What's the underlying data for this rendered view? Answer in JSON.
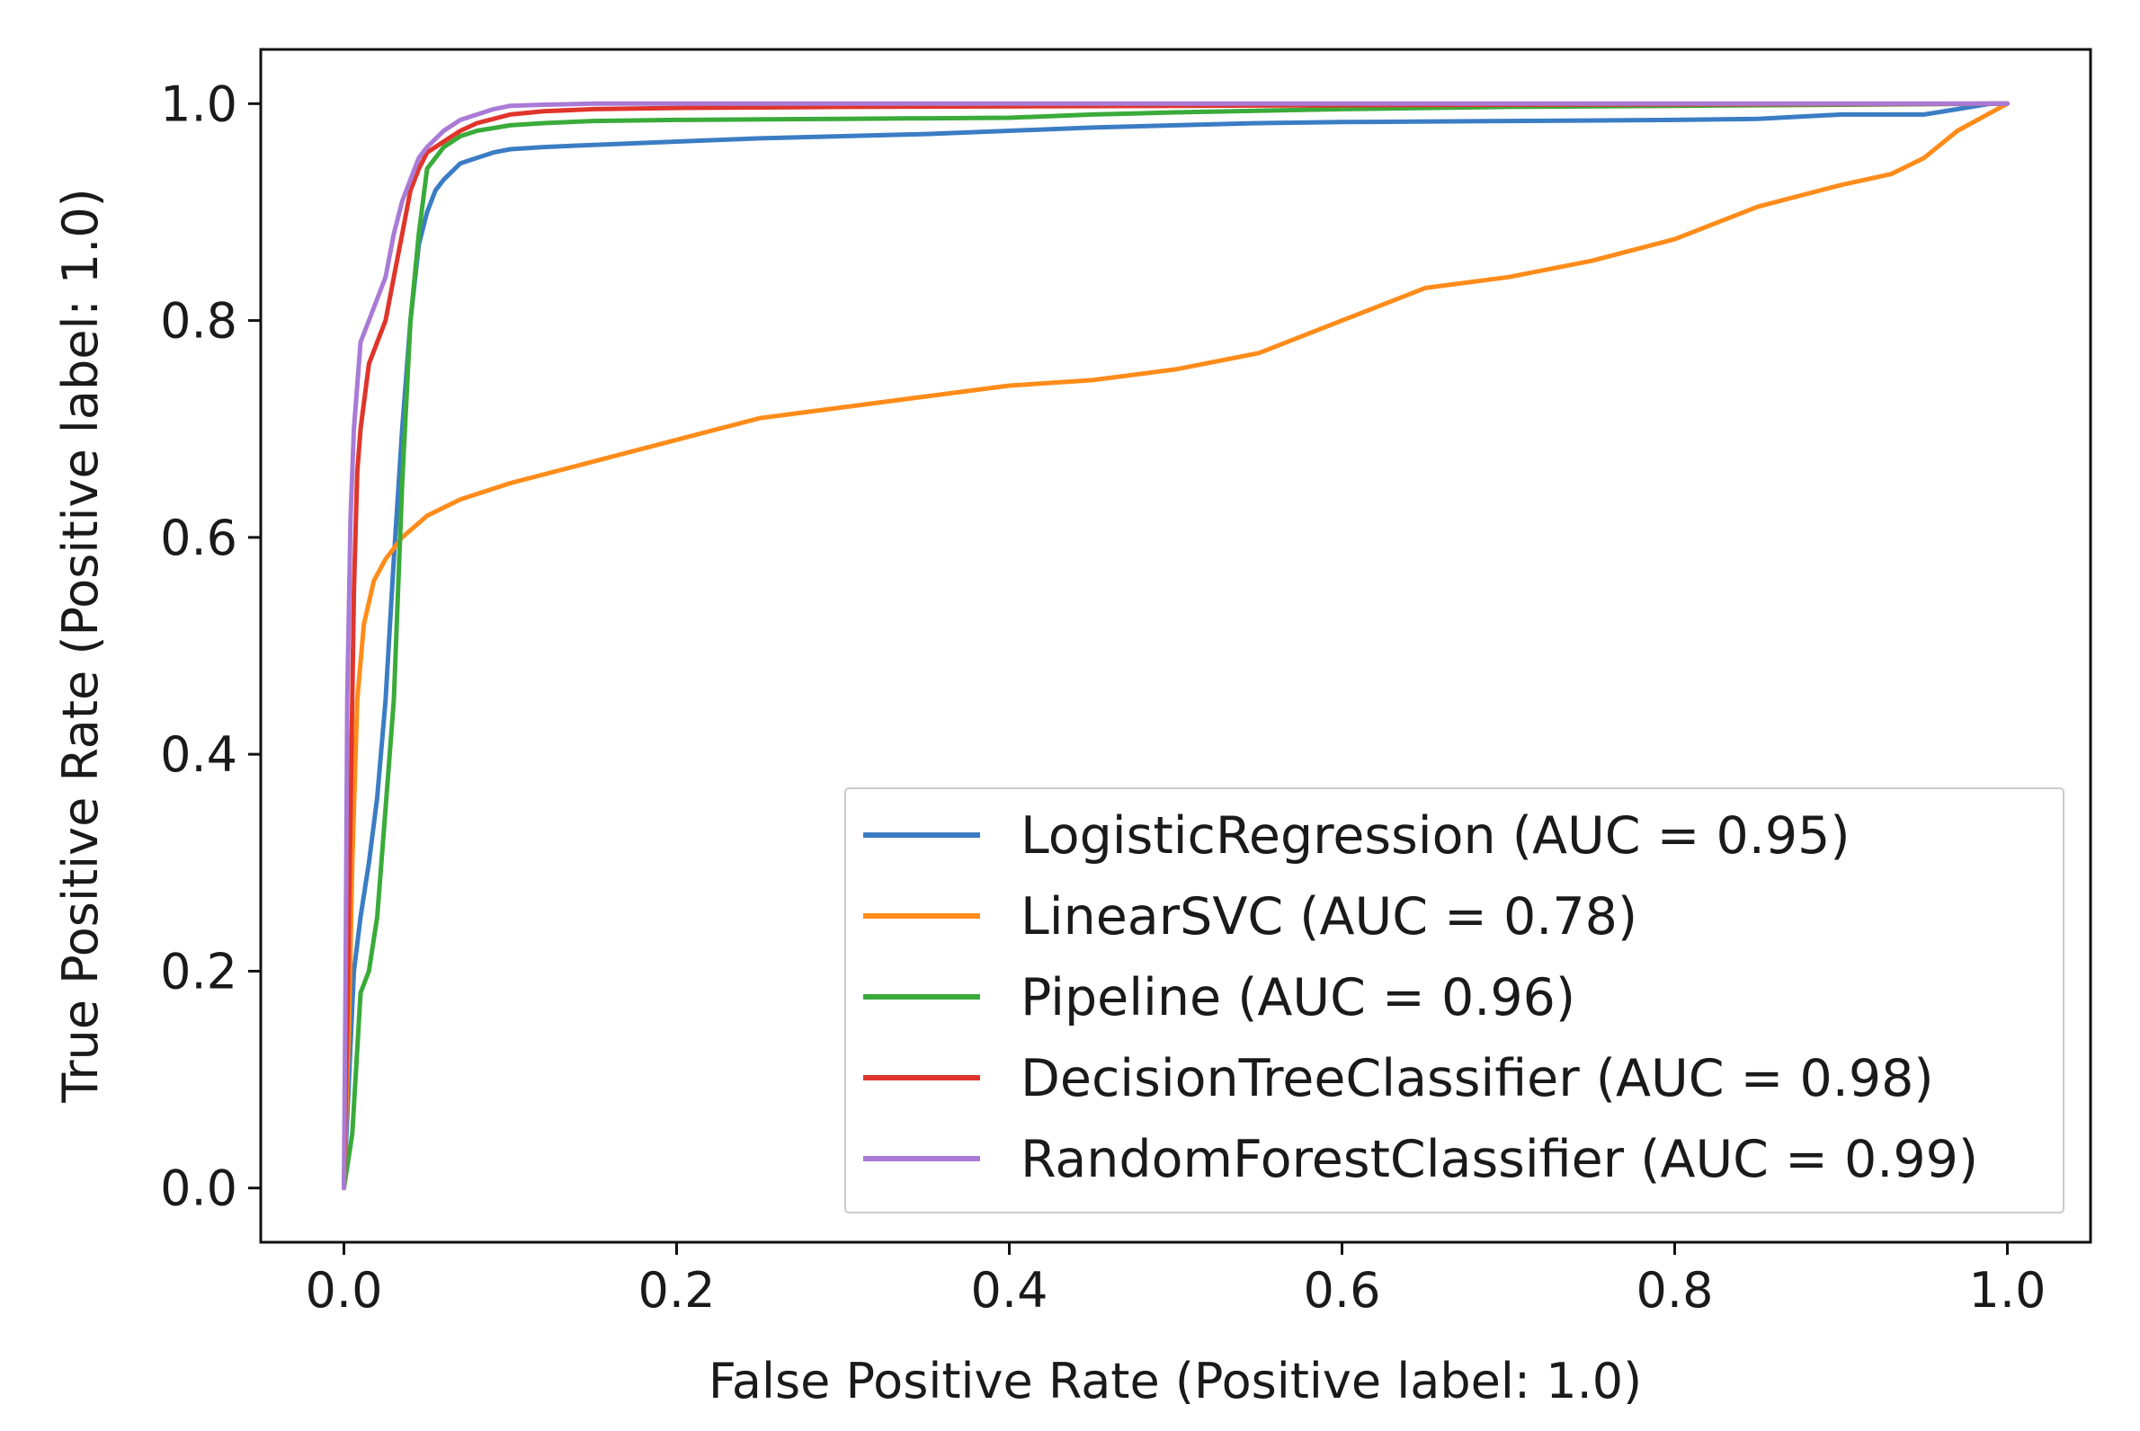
{
  "chart_data": {
    "type": "line",
    "title": "",
    "xlabel": "False Positive Rate (Positive label: 1.0)",
    "ylabel": "True Positive Rate (Positive label: 1.0)",
    "xlim": [
      -0.05,
      1.05
    ],
    "ylim": [
      -0.05,
      1.05
    ],
    "xticks": [
      0.0,
      0.2,
      0.4,
      0.6,
      0.8,
      1.0
    ],
    "yticks": [
      0.0,
      0.2,
      0.4,
      0.6,
      0.8,
      1.0
    ],
    "xtick_labels": [
      "0.0",
      "0.2",
      "0.4",
      "0.6",
      "0.8",
      "1.0"
    ],
    "ytick_labels": [
      "0.0",
      "0.2",
      "0.4",
      "0.6",
      "0.8",
      "1.0"
    ],
    "grid": false,
    "legend_position": "lower-right",
    "series": [
      {
        "name": "LogisticRegression (AUC = 0.95)",
        "color": "#3b7dc4",
        "x": [
          0.0,
          0.003,
          0.006,
          0.01,
          0.015,
          0.02,
          0.025,
          0.03,
          0.035,
          0.04,
          0.045,
          0.05,
          0.055,
          0.06,
          0.07,
          0.08,
          0.09,
          0.1,
          0.12,
          0.15,
          0.2,
          0.25,
          0.3,
          0.35,
          0.4,
          0.45,
          0.5,
          0.55,
          0.6,
          0.7,
          0.8,
          0.85,
          0.9,
          0.95,
          0.97,
          0.99,
          1.0
        ],
        "y": [
          0.0,
          0.1,
          0.2,
          0.25,
          0.3,
          0.36,
          0.45,
          0.58,
          0.7,
          0.8,
          0.87,
          0.9,
          0.92,
          0.93,
          0.945,
          0.95,
          0.955,
          0.958,
          0.96,
          0.962,
          0.965,
          0.968,
          0.97,
          0.972,
          0.975,
          0.978,
          0.98,
          0.982,
          0.983,
          0.984,
          0.985,
          0.986,
          0.99,
          0.99,
          0.995,
          1.0,
          1.0
        ]
      },
      {
        "name": "LinearSVC (AUC = 0.78)",
        "color": "#ff8c1a",
        "x": [
          0.0,
          0.003,
          0.005,
          0.008,
          0.012,
          0.018,
          0.025,
          0.035,
          0.05,
          0.07,
          0.1,
          0.15,
          0.2,
          0.25,
          0.3,
          0.35,
          0.4,
          0.45,
          0.5,
          0.55,
          0.6,
          0.65,
          0.7,
          0.75,
          0.8,
          0.85,
          0.9,
          0.93,
          0.95,
          0.97,
          1.0
        ],
        "y": [
          0.0,
          0.15,
          0.3,
          0.45,
          0.52,
          0.56,
          0.58,
          0.6,
          0.62,
          0.635,
          0.65,
          0.67,
          0.69,
          0.71,
          0.72,
          0.73,
          0.74,
          0.745,
          0.755,
          0.77,
          0.8,
          0.83,
          0.84,
          0.855,
          0.875,
          0.905,
          0.925,
          0.935,
          0.95,
          0.975,
          1.0
        ]
      },
      {
        "name": "Pipeline (AUC = 0.96)",
        "color": "#3aab3a",
        "x": [
          0.0,
          0.005,
          0.01,
          0.015,
          0.02,
          0.025,
          0.03,
          0.035,
          0.04,
          0.045,
          0.05,
          0.06,
          0.07,
          0.08,
          0.1,
          0.12,
          0.15,
          0.2,
          0.3,
          0.4,
          0.45,
          0.5,
          0.6,
          0.7,
          0.8,
          0.9,
          1.0
        ],
        "y": [
          0.0,
          0.05,
          0.18,
          0.2,
          0.25,
          0.35,
          0.45,
          0.65,
          0.8,
          0.88,
          0.94,
          0.96,
          0.97,
          0.975,
          0.98,
          0.982,
          0.984,
          0.985,
          0.986,
          0.987,
          0.99,
          0.992,
          0.995,
          0.997,
          0.998,
          0.999,
          1.0
        ]
      },
      {
        "name": "DecisionTreeClassifier (AUC = 0.98)",
        "color": "#e0352b",
        "x": [
          0.0,
          0.002,
          0.004,
          0.006,
          0.008,
          0.01,
          0.015,
          0.02,
          0.025,
          0.03,
          0.035,
          0.04,
          0.045,
          0.05,
          0.06,
          0.07,
          0.08,
          0.1,
          0.12,
          0.15,
          0.2,
          0.3,
          0.5,
          0.7,
          1.0
        ],
        "y": [
          0.0,
          0.15,
          0.35,
          0.55,
          0.66,
          0.7,
          0.76,
          0.78,
          0.8,
          0.84,
          0.88,
          0.92,
          0.94,
          0.955,
          0.965,
          0.975,
          0.982,
          0.99,
          0.993,
          0.995,
          0.996,
          0.997,
          0.998,
          0.999,
          1.0
        ]
      },
      {
        "name": "RandomForestClassifier (AUC = 0.99)",
        "color": "#a97bd6",
        "x": [
          0.0,
          0.001,
          0.002,
          0.004,
          0.006,
          0.008,
          0.01,
          0.015,
          0.02,
          0.025,
          0.03,
          0.035,
          0.04,
          0.045,
          0.05,
          0.06,
          0.07,
          0.08,
          0.09,
          0.1,
          0.12,
          0.15,
          0.2,
          0.3,
          0.5,
          1.0
        ],
        "y": [
          0.0,
          0.2,
          0.45,
          0.62,
          0.7,
          0.74,
          0.78,
          0.8,
          0.82,
          0.84,
          0.88,
          0.91,
          0.93,
          0.95,
          0.96,
          0.975,
          0.985,
          0.99,
          0.995,
          0.998,
          0.999,
          1.0,
          1.0,
          1.0,
          1.0,
          1.0
        ]
      }
    ]
  }
}
